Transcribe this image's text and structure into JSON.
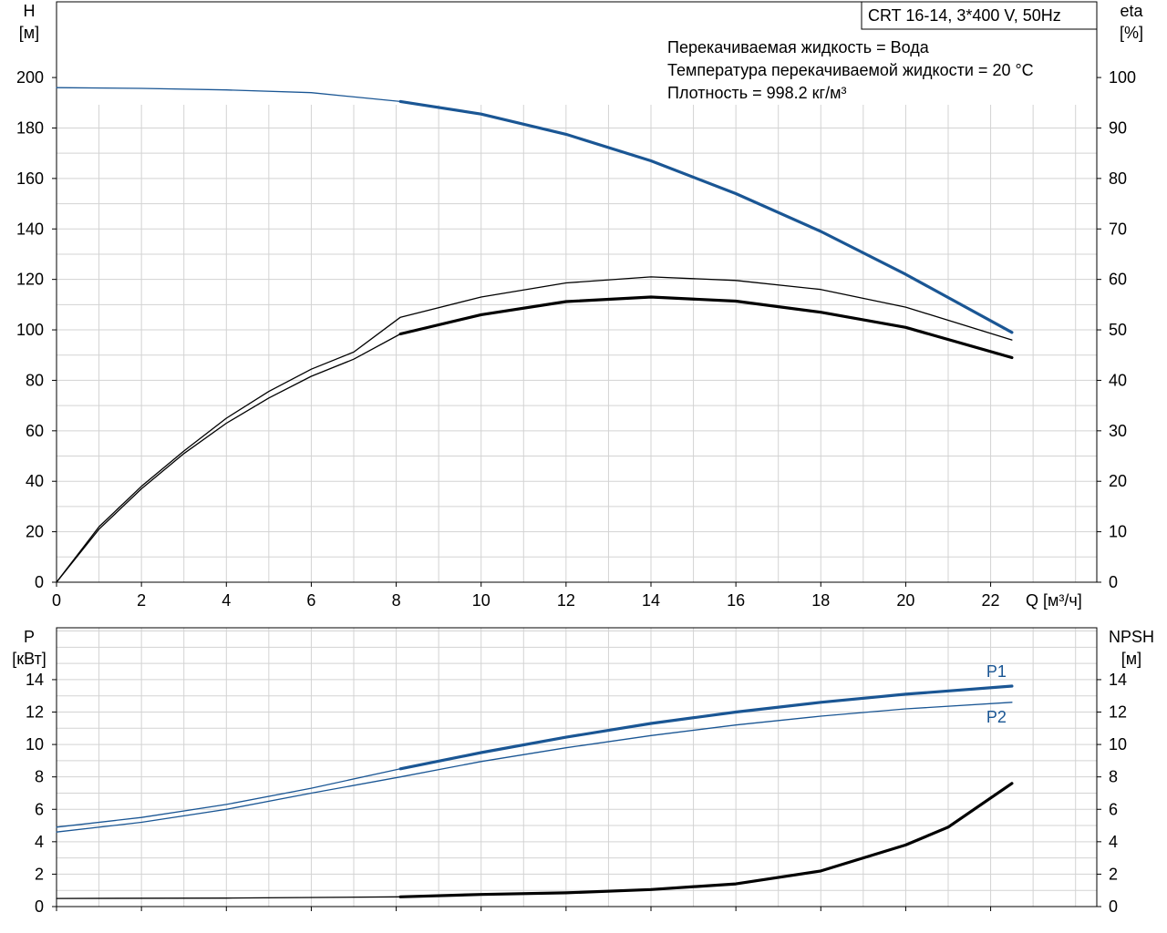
{
  "title": "CRT 16-14, 3*400 V, 50Hz",
  "info_lines": [
    "Перекачиваемая жидкость = Вода",
    "Температура перекачиваемой жидкости = 20 °C",
    "Плотность = 998.2 кг/м³"
  ],
  "colors": {
    "blue": "#1a5694",
    "black": "#000000",
    "grid": "#d3d3d3"
  },
  "chart_data": [
    {
      "type": "line",
      "xlabel": "Q [м³/ч]",
      "ylabel_left": [
        "H",
        "[м]"
      ],
      "ylabel_right": [
        "eta",
        "[%]"
      ],
      "xlim": [
        0,
        24.5
      ],
      "ylim_left": [
        0,
        230
      ],
      "ylim_right": [
        0,
        115
      ],
      "x_ticks": [
        0,
        2,
        4,
        6,
        8,
        10,
        12,
        14,
        16,
        18,
        20,
        22
      ],
      "y_ticks_left": [
        0,
        20,
        40,
        60,
        80,
        100,
        120,
        140,
        160,
        180,
        200
      ],
      "y_ticks_right": [
        0,
        10,
        20,
        30,
        40,
        50,
        60,
        70,
        80,
        90,
        100
      ],
      "grid": true,
      "series": [
        {
          "axis": "left",
          "color": "#1a5694",
          "thick_from": 8.1,
          "points": [
            [
              0,
              196
            ],
            [
              2,
              195.7
            ],
            [
              4,
              195.1
            ],
            [
              6,
              194
            ],
            [
              8.1,
              190.5
            ],
            [
              10,
              185.5
            ],
            [
              12,
              177.5
            ],
            [
              14,
              167
            ],
            [
              16,
              154
            ],
            [
              18,
              139
            ],
            [
              20,
              122
            ],
            [
              22.5,
              99
            ]
          ]
        },
        {
          "axis": "right",
          "color": "#000000",
          "thick_from": 22.6,
          "points": [
            [
              0,
              0
            ],
            [
              1,
              11
            ],
            [
              2,
              19
            ],
            [
              3,
              26
            ],
            [
              4,
              32.5
            ],
            [
              5,
              37.8
            ],
            [
              6,
              42.2
            ],
            [
              7,
              45.6
            ],
            [
              8.1,
              52.5
            ],
            [
              10,
              56.5
            ],
            [
              12,
              59.3
            ],
            [
              14,
              60.5
            ],
            [
              16,
              59.8
            ],
            [
              18,
              58
            ],
            [
              20,
              54.5
            ],
            [
              22.5,
              48
            ]
          ]
        },
        {
          "axis": "right",
          "color": "#000000",
          "thick_from": 8.1,
          "points": [
            [
              0,
              0
            ],
            [
              1,
              10.5
            ],
            [
              2,
              18.5
            ],
            [
              3,
              25.5
            ],
            [
              4,
              31.5
            ],
            [
              5,
              36.5
            ],
            [
              6,
              40.8
            ],
            [
              7,
              44.2
            ],
            [
              8.1,
              49.2
            ],
            [
              10,
              53
            ],
            [
              12,
              55.6
            ],
            [
              14,
              56.5
            ],
            [
              16,
              55.7
            ],
            [
              18,
              53.5
            ],
            [
              20,
              50.5
            ],
            [
              22.5,
              44.5
            ]
          ]
        }
      ]
    },
    {
      "type": "line",
      "ylabel_left": [
        "P",
        "[кВт]"
      ],
      "ylabel_right": [
        "NPSH",
        "[м]"
      ],
      "xlim": [
        0,
        24.5
      ],
      "ylim_left": [
        0,
        17.2
      ],
      "ylim_right": [
        0,
        17.2
      ],
      "x_ticks": [
        0,
        2,
        4,
        6,
        8,
        10,
        12,
        14,
        16,
        18,
        20,
        22
      ],
      "y_ticks_left": [
        0,
        2,
        4,
        6,
        8,
        10,
        12,
        14
      ],
      "y_ticks_right": [
        0,
        2,
        4,
        6,
        8,
        10,
        12,
        14
      ],
      "grid": true,
      "series": [
        {
          "name": "P1",
          "axis": "left",
          "color": "#1a5694",
          "thick_from": 8.1,
          "points": [
            [
              0,
              4.9
            ],
            [
              2,
              5.5
            ],
            [
              4,
              6.3
            ],
            [
              6,
              7.3
            ],
            [
              8.1,
              8.5
            ],
            [
              10,
              9.5
            ],
            [
              12,
              10.45
            ],
            [
              14,
              11.3
            ],
            [
              16,
              12
            ],
            [
              18,
              12.6
            ],
            [
              20,
              13.1
            ],
            [
              22.5,
              13.6
            ]
          ]
        },
        {
          "name": "P2",
          "axis": "left",
          "color": "#1a5694",
          "thick_from": 22.6,
          "points": [
            [
              0,
              4.6
            ],
            [
              2,
              5.2
            ],
            [
              4,
              6
            ],
            [
              6,
              7
            ],
            [
              8.1,
              8
            ],
            [
              10,
              8.95
            ],
            [
              12,
              9.8
            ],
            [
              14,
              10.55
            ],
            [
              16,
              11.2
            ],
            [
              18,
              11.75
            ],
            [
              20,
              12.2
            ],
            [
              22.5,
              12.6
            ]
          ]
        },
        {
          "axis": "right",
          "color": "#000000",
          "thick_from": 8.1,
          "points": [
            [
              0,
              0.5
            ],
            [
              4,
              0.52
            ],
            [
              8.1,
              0.6
            ],
            [
              10,
              0.75
            ],
            [
              12,
              0.85
            ],
            [
              14,
              1.05
            ],
            [
              16,
              1.4
            ],
            [
              18,
              2.2
            ],
            [
              20,
              3.8
            ],
            [
              21,
              4.9
            ],
            [
              22.5,
              7.6
            ]
          ]
        }
      ]
    }
  ]
}
